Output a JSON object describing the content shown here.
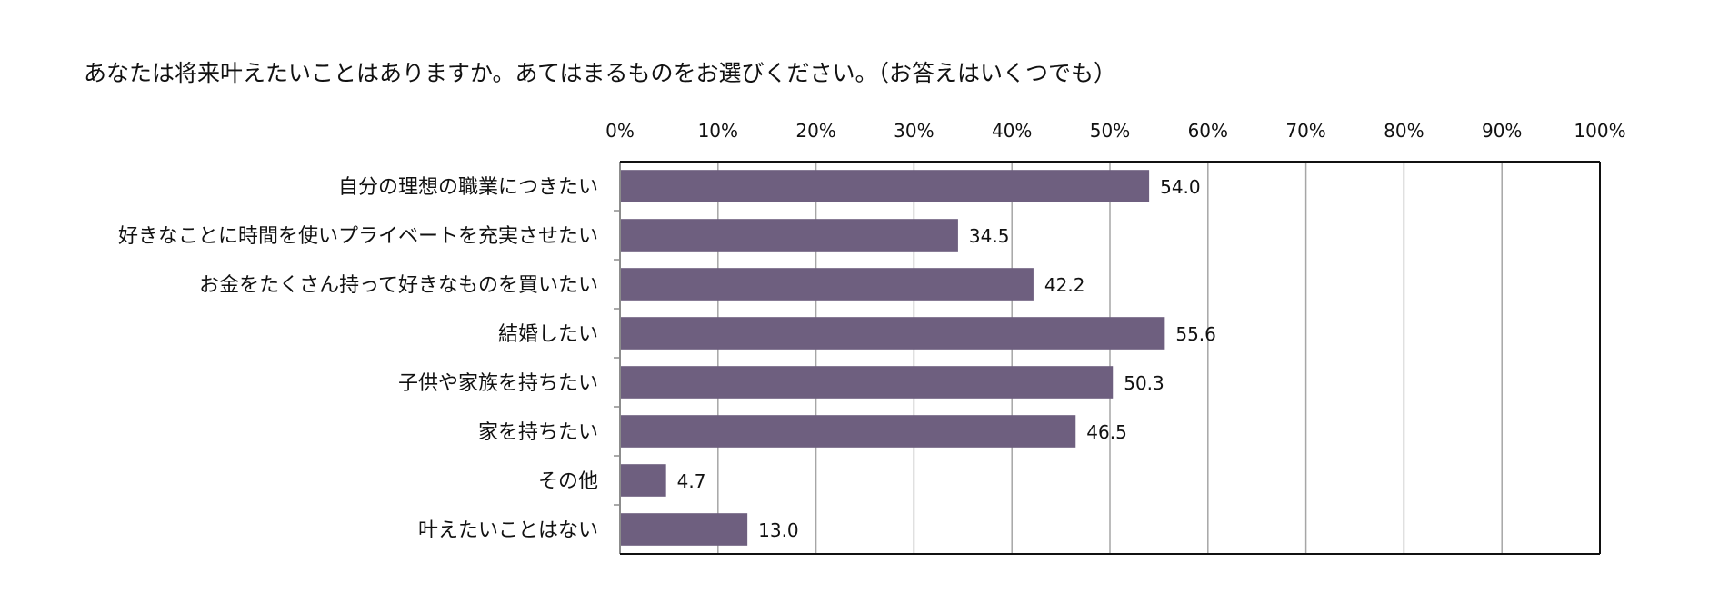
{
  "chart_data": {
    "type": "bar",
    "orientation": "horizontal",
    "title": "あなたは将来叶えたいことはありますか。あてはまるものをお選びください。（お答えはいくつでも）",
    "categories": [
      "自分の理想の職業につきたい",
      "好きなことに時間を使いプライベートを充実させたい",
      "お金をたくさん持って好きなものを買いたい",
      "結婚したい",
      "子供や家族を持ちたい",
      "家を持ちたい",
      "その他",
      "叶えたいことはない"
    ],
    "values": [
      54.0,
      34.5,
      42.2,
      55.6,
      50.3,
      46.5,
      4.7,
      13.0
    ],
    "value_labels": [
      "54.0",
      "34.5",
      "42.2",
      "55.6",
      "50.3",
      "46.5",
      "4.7",
      "13.0"
    ],
    "xticks": [
      "0%",
      "10%",
      "20%",
      "30%",
      "40%",
      "50%",
      "60%",
      "70%",
      "80%",
      "90%",
      "100%"
    ],
    "xlim": [
      0,
      100
    ],
    "grid": true,
    "axis_position": "top",
    "bar_color": "#6e5f7f"
  }
}
